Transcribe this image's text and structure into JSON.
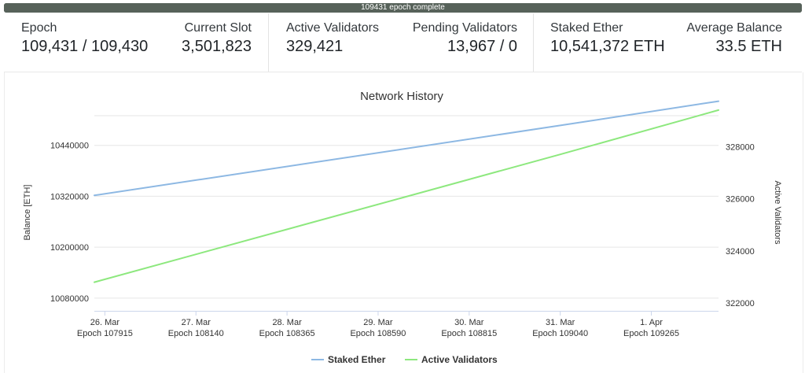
{
  "progress": {
    "text": "109431 epoch complete",
    "fraction": 1.0,
    "color": "#57625a"
  },
  "stats": {
    "epoch": {
      "label": "Epoch",
      "value": "109,431 / 109,430"
    },
    "current_slot": {
      "label": "Current Slot",
      "value": "3,501,823"
    },
    "active_validators": {
      "label": "Active Validators",
      "value": "329,421"
    },
    "pending_validators": {
      "label": "Pending Validators",
      "value": "13,967 / 0"
    },
    "staked_ether": {
      "label": "Staked Ether",
      "value": "10,541,372 ETH"
    },
    "average_balance": {
      "label": "Average Balance",
      "value": "33.5 ETH"
    }
  },
  "chart_data": {
    "type": "line",
    "title": "Network History",
    "ylabel": "Balance [ETH]",
    "y2label": "Active Validators",
    "ylim": [
      10050000,
      10560000
    ],
    "y2lim": [
      321700,
      330000
    ],
    "yticks": [
      10080000,
      10200000,
      10320000,
      10440000
    ],
    "y2ticks": [
      322000,
      324000,
      326000,
      328000
    ],
    "xlim": [
      107889,
      109431
    ],
    "xticks": [
      {
        "x": 107915,
        "date": "26. Mar",
        "epoch": "Epoch 107915"
      },
      {
        "x": 108140,
        "date": "27. Mar",
        "epoch": "Epoch 108140"
      },
      {
        "x": 108365,
        "date": "28. Mar",
        "epoch": "Epoch 108365"
      },
      {
        "x": 108590,
        "date": "29. Mar",
        "epoch": "Epoch 108590"
      },
      {
        "x": 108815,
        "date": "30. Mar",
        "epoch": "Epoch 108815"
      },
      {
        "x": 109040,
        "date": "31. Mar",
        "epoch": "Epoch 109040"
      },
      {
        "x": 109265,
        "date": "1. Apr",
        "epoch": "Epoch 109265"
      }
    ],
    "grid": true,
    "legend": "bottom-center",
    "series": [
      {
        "name": "Staked Ether",
        "axis": "left",
        "color": "#8db8e3",
        "x": [
          107889,
          109040,
          109431
        ],
        "values": [
          10322000,
          10487000,
          10544000
        ]
      },
      {
        "name": "Active Validators",
        "axis": "right",
        "color": "#8de87e",
        "x": [
          107889,
          109040,
          109431
        ],
        "values": [
          322800,
          327700,
          329400
        ]
      }
    ]
  }
}
